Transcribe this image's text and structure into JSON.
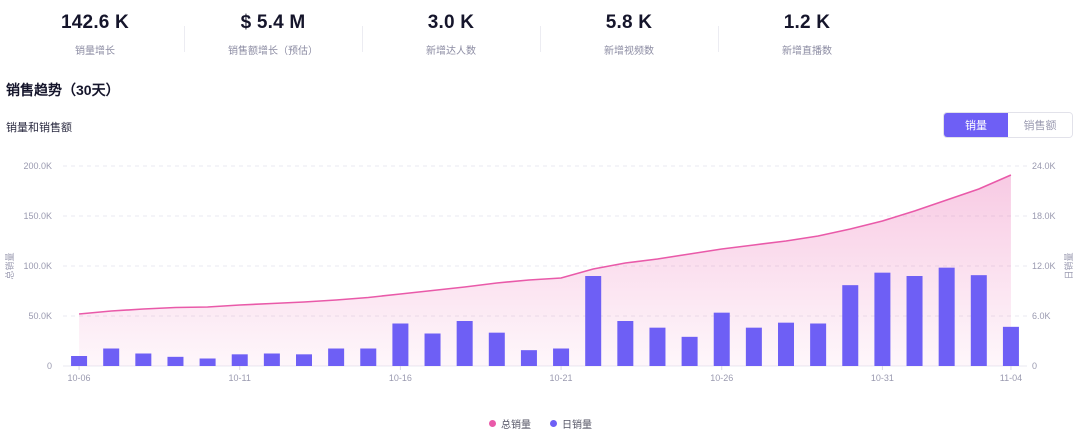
{
  "stats": [
    {
      "value": "142.6 K",
      "label": "销量增长"
    },
    {
      "value": "$ 5.4 M",
      "label": "销售额增长（预估）"
    },
    {
      "value": "3.0 K",
      "label": "新增达人数"
    },
    {
      "value": "5.8 K",
      "label": "新增视频数"
    },
    {
      "value": "1.2 K",
      "label": "新增直播数"
    }
  ],
  "section_title": "销售趋势（30天）",
  "chart_subtitle": "销量和销售额",
  "toggle": {
    "options": [
      "销量",
      "销售额"
    ],
    "active": "销量"
  },
  "chart_data": {
    "type": "bar",
    "xlabel": "",
    "ylabel": "总销量",
    "y2label": "日销量",
    "ylim": [
      0,
      200000
    ],
    "y2lim": [
      0,
      24000
    ],
    "yticks": [
      "200.0K",
      "150.0K",
      "100.0K",
      "50.0K",
      "0"
    ],
    "y2ticks": [
      "24.0K",
      "18.0K",
      "12.0K",
      "6.0K",
      "0"
    ],
    "x_tick_labels": [
      "10-06",
      "10-11",
      "10-16",
      "10-21",
      "10-26",
      "10-31",
      "11-04"
    ],
    "categories": [
      "10-06",
      "10-07",
      "10-08",
      "10-09",
      "10-10",
      "10-11",
      "10-12",
      "10-13",
      "10-14",
      "10-15",
      "10-16",
      "10-17",
      "10-18",
      "10-19",
      "10-20",
      "10-21",
      "10-22",
      "10-23",
      "10-24",
      "10-25",
      "10-26",
      "10-27",
      "10-28",
      "10-29",
      "10-30",
      "10-31",
      "11-01",
      "11-02",
      "11-03",
      "11-04"
    ],
    "grid": true,
    "legend_position": "bottom-center",
    "colors": {
      "total": "#e95aa9",
      "daily": "#6e5ff5"
    },
    "series": [
      {
        "name": "总销量",
        "type": "area",
        "values": [
          52000,
          55000,
          57000,
          58500,
          59000,
          61000,
          62500,
          64000,
          66000,
          68500,
          72000,
          75500,
          79000,
          83000,
          86000,
          88000,
          97000,
          103000,
          107000,
          112000,
          117000,
          121000,
          125000,
          130000,
          137000,
          145000,
          155000,
          166000,
          177000,
          191000
        ]
      },
      {
        "name": "日销量",
        "type": "bar",
        "values": [
          1200,
          2100,
          1500,
          1100,
          900,
          1400,
          1500,
          1400,
          2100,
          2100,
          5100,
          3900,
          5400,
          4000,
          1900,
          2100,
          10800,
          5400,
          4600,
          3500,
          6400,
          4600,
          5200,
          5100,
          9700,
          11200,
          10800,
          11800,
          10900,
          4700
        ]
      }
    ]
  }
}
